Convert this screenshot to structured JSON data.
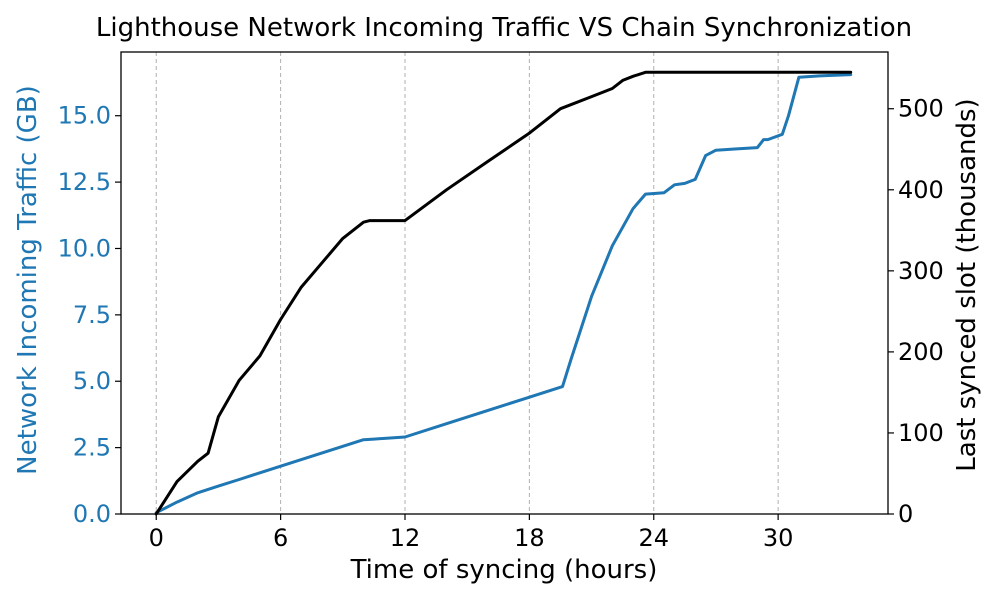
{
  "chart_data": {
    "type": "line",
    "title": "Lighthouse Network Incoming Traffic VS Chain Synchronization",
    "xlabel": "Time of syncing (hours)",
    "ylabel_left": "Network Incoming Traffic (GB)",
    "ylabel_right": "Last synced slot (thousands)",
    "xlim": [
      -1.7,
      35.3
    ],
    "ylim_left": [
      0,
      17.4
    ],
    "ylim_right": [
      0,
      570
    ],
    "x_ticks": [
      0,
      6,
      12,
      18,
      24,
      30
    ],
    "y_ticks_left": [
      0.0,
      2.5,
      5.0,
      7.5,
      10.0,
      12.5,
      15.0
    ],
    "y_tick_labels_left": [
      "0.0",
      "2.5",
      "5.0",
      "7.5",
      "10.0",
      "12.5",
      "15.0"
    ],
    "y_ticks_right": [
      0,
      100,
      200,
      300,
      400,
      500
    ],
    "grid": "vertical dashed at x ticks",
    "colors": {
      "traffic": "#1f77b4",
      "slot": "#000000",
      "grid": "#b0b0b0"
    },
    "series": [
      {
        "axis": "left",
        "color": "#1f77b4",
        "x": [
          0,
          1,
          2,
          3,
          4,
          5,
          6,
          7,
          8,
          9,
          10,
          10.5,
          12,
          14,
          16,
          18,
          19.6,
          20,
          21,
          22,
          22.5,
          23,
          23.6,
          24.5,
          25,
          25.5,
          26,
          26.5,
          27,
          28,
          29,
          29.3,
          29.5,
          30.2,
          30.5,
          31,
          32,
          33.5
        ],
        "y": [
          0.05,
          0.45,
          0.8,
          1.05,
          1.3,
          1.55,
          1.8,
          2.05,
          2.3,
          2.55,
          2.8,
          2.82,
          2.9,
          3.4,
          3.9,
          4.4,
          4.8,
          5.8,
          8.2,
          10.1,
          10.8,
          11.5,
          12.05,
          12.1,
          12.4,
          12.45,
          12.6,
          13.5,
          13.7,
          13.75,
          13.8,
          14.1,
          14.1,
          14.3,
          15.0,
          16.45,
          16.5,
          16.55
        ]
      },
      {
        "axis": "right",
        "color": "#000000",
        "x": [
          0,
          1,
          2,
          2.5,
          3,
          4,
          5,
          6,
          7,
          8,
          9,
          10,
          10.3,
          12,
          14,
          16,
          18,
          19.5,
          20,
          21,
          22,
          22.5,
          23,
          23.6,
          24,
          26,
          28,
          30,
          32,
          33.5
        ],
        "y": [
          0,
          40,
          65,
          75,
          120,
          165,
          195,
          240,
          280,
          310,
          340,
          360,
          362,
          362,
          400,
          435,
          470,
          500,
          505,
          515,
          525,
          535,
          540,
          545,
          545,
          545,
          545,
          545,
          545,
          545
        ]
      }
    ]
  }
}
